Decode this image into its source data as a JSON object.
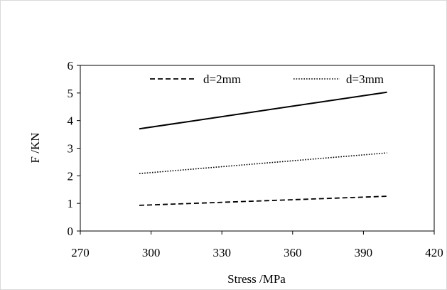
{
  "chart_data": {
    "type": "line",
    "title": "",
    "xlabel": "Stress /MPa",
    "ylabel": "F /KN",
    "xlim": [
      270,
      420
    ],
    "ylim": [
      0,
      6
    ],
    "x_ticks": [
      270,
      300,
      330,
      360,
      390,
      420
    ],
    "y_ticks": [
      0,
      1,
      2,
      3,
      4,
      5,
      6
    ],
    "grid": false,
    "legend_position": "top",
    "series": [
      {
        "name": "d=2mm",
        "style": "dashed",
        "x": [
          295,
          400
        ],
        "y": [
          0.93,
          1.26
        ]
      },
      {
        "name": "d=3mm",
        "style": "dotted",
        "x": [
          295,
          400
        ],
        "y": [
          2.08,
          2.83
        ]
      },
      {
        "style": "solid",
        "x": [
          295,
          400
        ],
        "y": [
          3.7,
          5.03
        ]
      }
    ],
    "colors": {
      "line": "#000000",
      "axis": "#000000",
      "frame": "#d9d9d9"
    }
  }
}
